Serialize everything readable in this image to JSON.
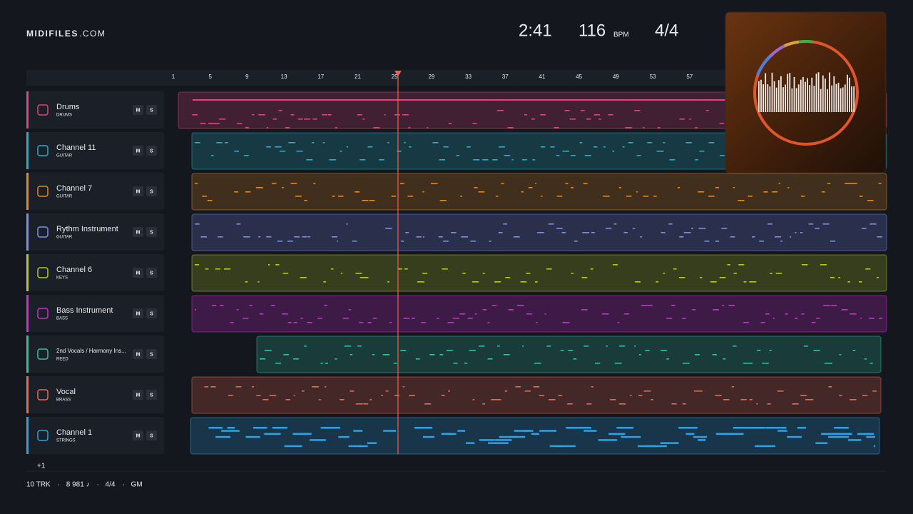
{
  "brand": {
    "name": "MIDIFILES",
    "suffix": ".COM"
  },
  "transport": {
    "time": "2:41",
    "tempo": "116",
    "tempo_unit": "BPM",
    "meter": "4/4"
  },
  "ruler": [
    "1",
    "5",
    "9",
    "13",
    "17",
    "21",
    "25",
    "29",
    "33",
    "37",
    "41",
    "45",
    "49",
    "53",
    "57"
  ],
  "tracks": [
    {
      "name": "Drums",
      "type": "DRUMS",
      "mute": "M",
      "solo": "S"
    },
    {
      "name": "Channel 11",
      "type": "GUITAR",
      "mute": "M",
      "solo": "S"
    },
    {
      "name": "Channel 7",
      "type": "GUITAR",
      "mute": "M",
      "solo": "S"
    },
    {
      "name": "Rythm Instrument",
      "type": "GUITAR",
      "mute": "M",
      "solo": "S"
    },
    {
      "name": "Channel 6",
      "type": "KEYS",
      "mute": "M",
      "solo": "S"
    },
    {
      "name": "Bass Instrument",
      "type": "BASS",
      "mute": "M",
      "solo": "S"
    },
    {
      "name": "2nd Vocals / Harmony Ins...",
      "type": "REED",
      "mute": "M",
      "solo": "S"
    },
    {
      "name": "Vocal",
      "type": "BRASS",
      "mute": "M",
      "solo": "S"
    },
    {
      "name": "Channel 1",
      "type": "STRINGS",
      "mute": "M",
      "solo": "S"
    }
  ],
  "more_tracks": "+1",
  "footer": {
    "items": [
      "10 TRK",
      "8 981 ♪",
      "4/4",
      "GM"
    ],
    "separator": "·"
  }
}
